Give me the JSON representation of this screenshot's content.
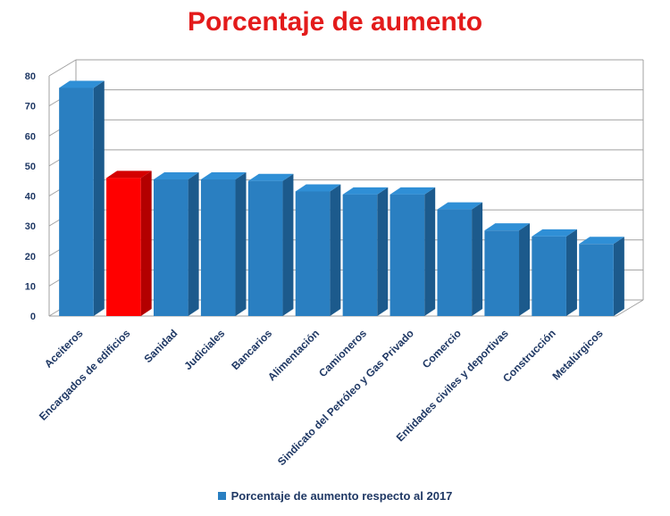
{
  "chart_data": {
    "type": "bar",
    "title": "Porcentaje de aumento",
    "categories": [
      "Aceiteros",
      "Encargados de edificios",
      "Sanidad",
      "Judiciales",
      "Bancarios",
      "Alimentación",
      "Camioneros",
      "Sindicato del Petróleo y Gas Privado",
      "Comercio",
      "Entidades civiles y deportivas",
      "Construcción",
      "Metalúrgicos"
    ],
    "series": [
      {
        "name": "Porcentaje de aumento respecto al 2017",
        "values": [
          76,
          46,
          45.5,
          45.5,
          45,
          41.5,
          40.5,
          40.5,
          35.5,
          28.5,
          26.5,
          24
        ]
      }
    ],
    "highlight_index": 1,
    "ylim": [
      0,
      80
    ],
    "yticks": [
      0,
      10,
      20,
      30,
      40,
      50,
      60,
      70,
      80
    ],
    "grid": true,
    "three_d": true,
    "legend_position": "bottom",
    "colors": {
      "bar_front": "#2a7fc1",
      "bar_side": "#1c5a8c",
      "bar_top": "#2f8fd6",
      "highlight_front": "#ff0000",
      "highlight_side": "#b30000",
      "highlight_top": "#d40000",
      "title": "#e31b1b",
      "axis_text": "#1f3864",
      "grid": "#a0a0a0"
    }
  }
}
